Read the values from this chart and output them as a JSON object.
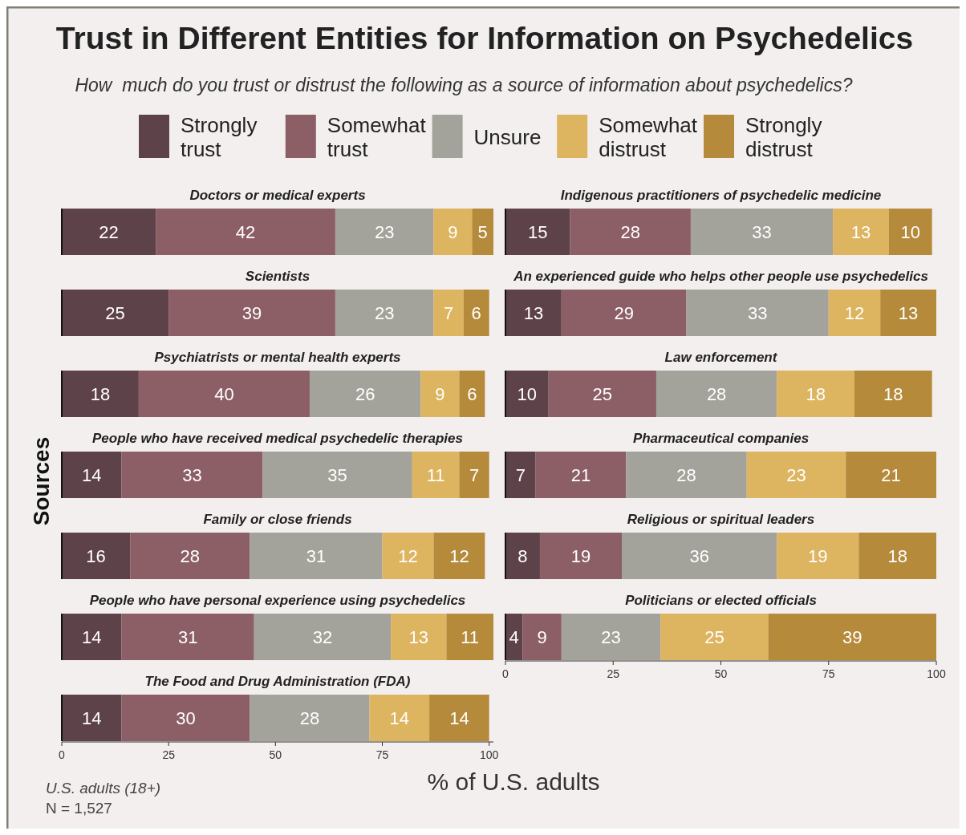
{
  "chart_data": [
    {
      "type": "other",
      "title": "Trust in Different Entities for Information on Psychedelics",
      "subtitle": "How  much do you trust or distrust the following as a source of information about psychedelics?",
      "ylabel": "Sources",
      "xlabel": "% of U.S. adults",
      "annotations": [
        "U.S. adults (18+)",
        "N = 1,527"
      ]
    },
    {
      "type": "bar",
      "orientation": "horizontal",
      "stacked": true,
      "categories": [
        "Doctors or medical experts",
        "Scientists",
        "Psychiatrists or mental health experts",
        "People who have received medical psychedelic therapies",
        "Family or close friends",
        "People who have personal experience using psychedelics",
        "The Food and Drug Administration (FDA)"
      ],
      "xlim": [
        0,
        101
      ],
      "xticks": [
        0,
        25,
        50,
        75,
        100
      ],
      "data_labels": true,
      "legend": "top",
      "series": [
        {
          "name": "Strongly trust",
          "color": "#5e4249",
          "values": [
            22,
            25,
            18,
            14,
            16,
            14,
            14
          ]
        },
        {
          "name": "Somewhat trust",
          "color": "#8c5e66",
          "values": [
            42,
            39,
            40,
            33,
            28,
            31,
            30
          ]
        },
        {
          "name": "Unsure",
          "color": "#a3a39b",
          "values": [
            23,
            23,
            26,
            35,
            31,
            32,
            28
          ]
        },
        {
          "name": "Somewhat distrust",
          "color": "#ddb45f",
          "values": [
            9,
            7,
            9,
            11,
            12,
            13,
            14
          ]
        },
        {
          "name": "Strongly distrust",
          "color": "#b58a3b",
          "values": [
            5,
            6,
            6,
            7,
            12,
            11,
            14
          ]
        }
      ]
    },
    {
      "type": "bar",
      "orientation": "horizontal",
      "stacked": true,
      "categories": [
        "Indigenous practitioners of psychedelic medicine",
        "An experienced guide who helps other people use psychedelics",
        "Law enforcement",
        "Pharmaceutical companies",
        "Religious or spiritual leaders",
        "Politicians or elected officials"
      ],
      "xlim": [
        0,
        100
      ],
      "xticks": [
        0,
        25,
        50,
        75,
        100
      ],
      "data_labels": true,
      "series": [
        {
          "color": "#5e4249",
          "values": [
            15,
            13,
            10,
            7,
            8,
            4
          ]
        },
        {
          "color": "#8c5e66",
          "values": [
            28,
            29,
            25,
            21,
            19,
            9
          ]
        },
        {
          "color": "#a3a39b",
          "values": [
            33,
            33,
            28,
            28,
            36,
            23
          ]
        },
        {
          "color": "#ddb45f",
          "values": [
            13,
            12,
            18,
            23,
            19,
            25
          ]
        },
        {
          "color": "#b58a3b",
          "values": [
            10,
            13,
            18,
            21,
            18,
            39
          ]
        }
      ]
    }
  ]
}
